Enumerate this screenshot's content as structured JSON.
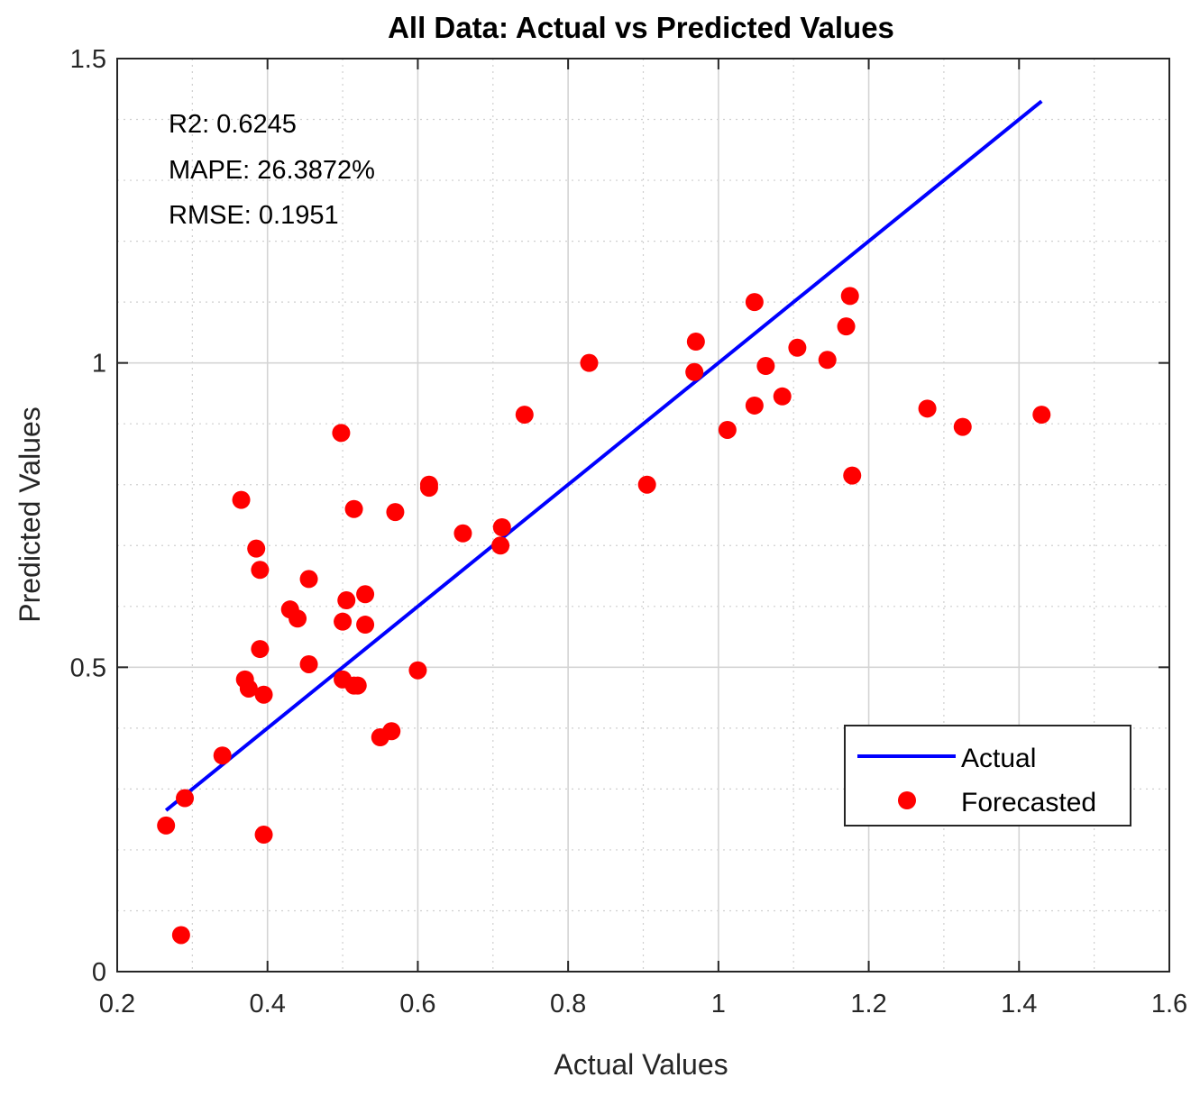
{
  "chart_data": {
    "type": "scatter",
    "title": "All Data: Actual vs Predicted Values",
    "xlabel": "Actual Values",
    "ylabel": "Predicted Values",
    "xlim": [
      0.2,
      1.6
    ],
    "ylim": [
      0,
      1.5
    ],
    "xticks": [
      0.2,
      0.4,
      0.6,
      0.8,
      1,
      1.2,
      1.4,
      1.6
    ],
    "xtick_labels": [
      "0.2",
      "0.4",
      "0.6",
      "0.8",
      "1",
      "1.2",
      "1.4",
      "1.6"
    ],
    "yticks": [
      0,
      0.5,
      1,
      1.5
    ],
    "ytick_labels": [
      "0",
      "0.5",
      "1",
      "1.5"
    ],
    "grid": true,
    "minor_grid": true,
    "legend_position": "bottom-right",
    "annotations": [
      "R2: 0.6245",
      "MAPE: 26.3872%",
      "RMSE: 0.1951"
    ],
    "series": [
      {
        "name": "Actual",
        "kind": "line",
        "color": "#0000ff",
        "x": [
          0.265,
          1.43
        ],
        "y": [
          0.265,
          1.43
        ]
      },
      {
        "name": "Forecasted",
        "kind": "scatter",
        "color": "#ff0000",
        "x": [
          0.265,
          0.285,
          0.29,
          0.395,
          0.34,
          0.375,
          0.37,
          0.395,
          0.39,
          0.39,
          0.385,
          0.365,
          0.43,
          0.44,
          0.455,
          0.455,
          0.5,
          0.505,
          0.515,
          0.515,
          0.53,
          0.53,
          0.5,
          0.52,
          0.55,
          0.565,
          0.57,
          0.6,
          0.615,
          0.615,
          0.66,
          0.71,
          0.712,
          0.742,
          0.828,
          0.905,
          0.968,
          0.97,
          1.012,
          1.048,
          1.048,
          1.063,
          1.085,
          1.105,
          1.145,
          1.17,
          1.175,
          1.178,
          1.278,
          1.325,
          1.43,
          0.498
        ],
        "y": [
          0.24,
          0.06,
          0.285,
          0.225,
          0.355,
          0.465,
          0.48,
          0.455,
          0.53,
          0.66,
          0.695,
          0.775,
          0.595,
          0.58,
          0.645,
          0.505,
          0.575,
          0.61,
          0.47,
          0.76,
          0.57,
          0.62,
          0.48,
          0.47,
          0.385,
          0.395,
          0.755,
          0.495,
          0.795,
          0.8,
          0.72,
          0.7,
          0.73,
          0.915,
          1.0,
          0.8,
          0.985,
          1.035,
          0.89,
          0.93,
          1.1,
          0.995,
          0.945,
          1.025,
          1.005,
          1.06,
          1.11,
          0.815,
          0.925,
          0.895,
          0.915,
          0.885
        ]
      }
    ]
  }
}
